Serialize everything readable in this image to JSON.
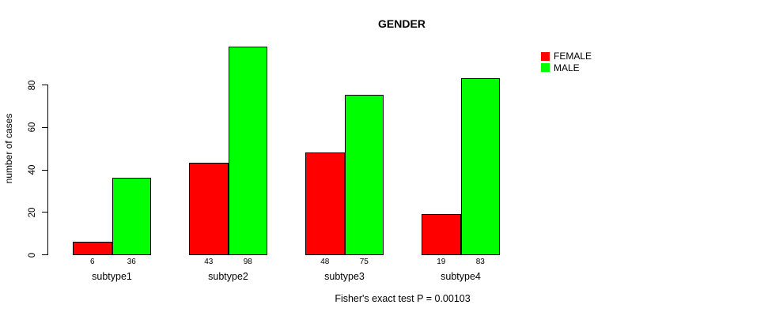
{
  "title": "GENDER",
  "caption": "Fisher's exact test P = 0.00103",
  "y_axis": {
    "label": "number of cases",
    "ticks": [
      0,
      20,
      40,
      60,
      80
    ]
  },
  "legend": {
    "items": [
      {
        "label": "FEMALE",
        "color": "#ff0000"
      },
      {
        "label": "MALE",
        "color": "#00ff00"
      }
    ]
  },
  "colors": {
    "female": "#ff0000",
    "male": "#00ff00",
    "axis": "#000000",
    "background": "#ffffff"
  },
  "chart_data": {
    "type": "bar",
    "title": "GENDER",
    "categories": [
      "subtype1",
      "subtype2",
      "subtype3",
      "subtype4"
    ],
    "series": [
      {
        "name": "FEMALE",
        "color": "#ff0000",
        "values": [
          6,
          43,
          48,
          19
        ]
      },
      {
        "name": "MALE",
        "color": "#00ff00",
        "values": [
          36,
          98,
          75,
          83
        ]
      }
    ],
    "bar_value_labels": [
      [
        6,
        36
      ],
      [
        43,
        98
      ],
      [
        48,
        75
      ],
      [
        19,
        83
      ]
    ],
    "xlabel": "",
    "ylabel": "number of cases",
    "ylim": [
      0,
      100
    ],
    "yticks": [
      0,
      20,
      40,
      60,
      80
    ],
    "grid": false,
    "legend_position": "top-right",
    "annotation": "Fisher's exact test P = 0.00103"
  }
}
